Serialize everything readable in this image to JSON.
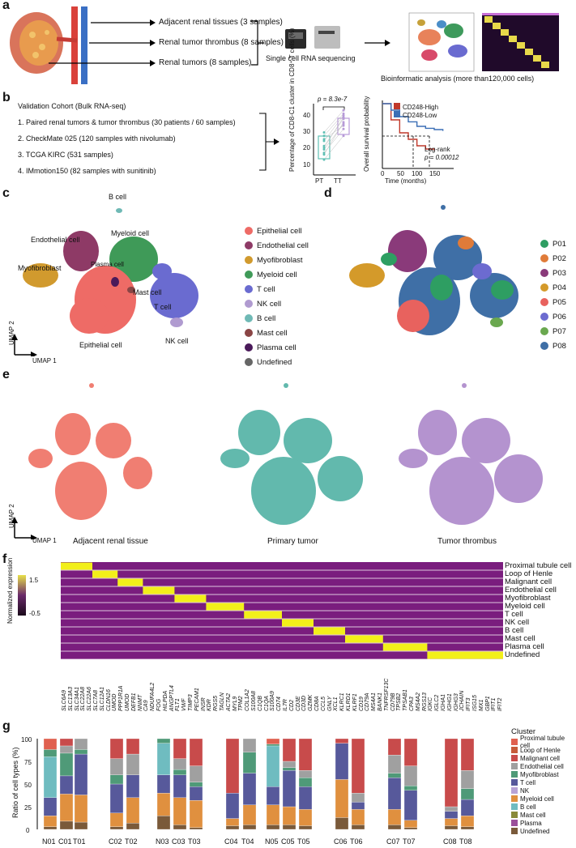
{
  "panel_a": {
    "label": "a",
    "arrows": [
      "Adjacent renal tissues (3 samples)",
      "Renal tumor thrombus  (8 samples)",
      "Renal tumors  (8 samples)"
    ],
    "sequencing": "Single cell RNA sequencing",
    "bioinformatic": "Bioinformatic analysis (more than120,000 cells)"
  },
  "panel_b": {
    "label": "b",
    "cohort_title": "Validation Cohort (Bulk RNA-seq)",
    "items": [
      "1. Paired renal tumors  & tumor thrombus (30 patients / 60 samples)",
      "2. CheckMate 025 (120 samples with nivolumab)",
      "3. TCGA KIRC (531 samples)",
      "4. IMmotion150 (82 samples with sunitinib)"
    ],
    "box_ylabel": "Percentage of CD8-C1 cluster in CD8⁺ T cells (%)",
    "pvalue": "p = 8.3e-7",
    "box_x": [
      "PT",
      "TT"
    ],
    "box_yticks": [
      "10",
      "20",
      "30",
      "40"
    ],
    "surv_ylabel": "Overall survival probability",
    "surv_xlabel": "Time (months)",
    "surv_legend": [
      "CD248-High",
      "CD248-Low"
    ],
    "surv_xticks": [
      "0",
      "50",
      "100",
      "150"
    ],
    "logrank": "Log-rank",
    "logrank_p": "p = 0.00012",
    "colors": {
      "high": "#c0392b",
      "low": "#3b6fb6"
    }
  },
  "panel_c": {
    "label": "c",
    "clusters": [
      "B cell",
      "Endothelial cell",
      "Myeloid cell",
      "Plasma cell",
      "Myofibroblast",
      "Mast cell",
      "T cell",
      "NK cell",
      "Epithelial cell"
    ],
    "legend": [
      {
        "name": "Epithelial cell",
        "color": "#ee6b66"
      },
      {
        "name": "Endothelial cell",
        "color": "#8e3a66"
      },
      {
        "name": "Myofibroblast",
        "color": "#d19a2e"
      },
      {
        "name": "Myeloid cell",
        "color": "#3f9a58"
      },
      {
        "name": "T cell",
        "color": "#6a6bd0"
      },
      {
        "name": "NK cell",
        "color": "#b09bd0"
      },
      {
        "name": "B cell",
        "color": "#6fb9b5"
      },
      {
        "name": "Mast cell",
        "color": "#8a4545"
      },
      {
        "name": "Plasma cell",
        "color": "#4a1a5a"
      },
      {
        "name": "Undefined",
        "color": "#666666"
      }
    ],
    "umap1": "UMAP 1",
    "umap2": "UMAP 2"
  },
  "panel_d": {
    "label": "d",
    "legend": [
      {
        "name": "P01",
        "color": "#2e9e62"
      },
      {
        "name": "P02",
        "color": "#e07b39"
      },
      {
        "name": "P03",
        "color": "#8a3a7a"
      },
      {
        "name": "P04",
        "color": "#d49a2a"
      },
      {
        "name": "P05",
        "color": "#e8625e"
      },
      {
        "name": "P06",
        "color": "#6c6bd0"
      },
      {
        "name": "P07",
        "color": "#6aa84f"
      },
      {
        "name": "P08",
        "color": "#3f6fa6"
      }
    ]
  },
  "panel_e": {
    "label": "e",
    "titles": [
      "Adjacent renal tissue",
      "Primary tumor",
      "Tumor thrombus"
    ],
    "colors": [
      "#f07e72",
      "#62b9ad",
      "#b493cf"
    ],
    "umap1": "UMAP 1",
    "umap2": "UMAP 2"
  },
  "panel_f": {
    "label": "f",
    "scale_label": "Normalized expression",
    "scale_max": "1.5",
    "scale_min": "-0.5",
    "rows": [
      "Proximal tubule cell",
      "Loop of Henle",
      "Malignant cell",
      "Endothelial cell",
      "Myofibroblast",
      "Myeloid cell",
      "T cell",
      "NK cell",
      "B cell",
      "Mast cell",
      "Plasma cell",
      "Undefined"
    ],
    "genes": [
      "SLC6A9",
      "SLC13A3",
      "SLC34A1",
      "SLC22A8",
      "SLC22A6",
      "SLC7A8",
      "SLC12A1",
      "CLDN16",
      "UMOD",
      "PPP1R1A",
      "UMOD",
      "DEFB1",
      "NNMT",
      "CA9",
      "NDUFA4L2",
      "FOG",
      "HILPDA",
      "ANGPTL4",
      "FLT1",
      "VWF",
      "TIMP3",
      "PECAM1",
      "INSR",
      "KDR",
      "RGS5",
      "TAGLN",
      "ACTA2",
      "MYL9",
      "TPM2",
      "COL1A2",
      "S100A8",
      "C1QB",
      "C1QA",
      "S100A9",
      "CD74",
      "IL7R",
      "CD2",
      "CD3E",
      "CD3D",
      "GZMK",
      "CD8A",
      "CCL5",
      "GNLY",
      "XCL1",
      "KLRC1",
      "KLRD1",
      "KLRF1",
      "CD19",
      "CD79A",
      "MS4A1",
      "BANK1",
      "TNFRSF13C",
      "CD79B",
      "TPSB2",
      "TPSAB1",
      "CPA3",
      "MS4A2",
      "RGS13",
      "IGKC",
      "IGLC2",
      "IGHA1",
      "IGHG1",
      "IGHG3",
      "JCHAIN",
      "IFIT3",
      "ISG15",
      "MX1",
      "GBP1",
      "IFIT1",
      "IFIT2"
    ]
  },
  "panel_g": {
    "label": "g",
    "ylabel": "Ratio of cell types (%)",
    "yticks": [
      "0",
      "25",
      "50",
      "75",
      "100"
    ],
    "legend_title": "Cluster",
    "legend": [
      {
        "name": "Proximal tubule cell",
        "color": "#e0604f"
      },
      {
        "name": "Loop of Henle",
        "color": "#c65a3a"
      },
      {
        "name": "Malignant cell",
        "color": "#c84b4b"
      },
      {
        "name": "Endothelial cell",
        "color": "#a0a0a0"
      },
      {
        "name": "Myofibroblast",
        "color": "#4f9a78"
      },
      {
        "name": "T cell",
        "color": "#57599b"
      },
      {
        "name": "NK",
        "color": "#b8a3d6"
      },
      {
        "name": "Myeloid cell",
        "color": "#e0903f"
      },
      {
        "name": "B cell",
        "color": "#6fbcc0"
      },
      {
        "name": "Mast cell",
        "color": "#8a8a3a"
      },
      {
        "name": "Plasma",
        "color": "#9a4f9a"
      },
      {
        "name": "Undefined",
        "color": "#7a5a3a"
      }
    ]
  },
  "chart_data": [
    {
      "type": "bar",
      "title": "",
      "ylabel": "Ratio of cell types (%)",
      "ylim": [
        0,
        100
      ],
      "categories": [
        "N01",
        "C01",
        "T01",
        "C02",
        "T02",
        "N03",
        "C03",
        "T03",
        "C04",
        "T04",
        "N05",
        "C05",
        "T05",
        "C06",
        "T06",
        "C07",
        "T07",
        "C08",
        "T08"
      ],
      "series": [
        {
          "name": "Proximal tubule cell",
          "values": [
            12,
            0,
            0,
            0,
            0,
            0,
            0,
            0,
            0,
            0,
            6,
            0,
            0,
            0,
            0,
            0,
            0,
            0,
            0
          ]
        },
        {
          "name": "Malignant cell",
          "values": [
            0,
            8,
            0,
            22,
            17,
            0,
            22,
            30,
            60,
            0,
            0,
            25,
            35,
            5,
            60,
            18,
            30,
            75,
            35
          ]
        },
        {
          "name": "Endothelial cell",
          "values": [
            0,
            8,
            12,
            18,
            23,
            0,
            12,
            18,
            0,
            15,
            0,
            7,
            8,
            0,
            10,
            20,
            22,
            5,
            20
          ]
        },
        {
          "name": "Myofibroblast",
          "values": [
            8,
            25,
            5,
            10,
            0,
            5,
            6,
            5,
            0,
            23,
            2,
            3,
            10,
            0,
            0,
            5,
            5,
            0,
            12
          ]
        },
        {
          "name": "B cell",
          "values": [
            45,
            0,
            0,
            0,
            0,
            35,
            0,
            0,
            0,
            0,
            45,
            0,
            0,
            0,
            0,
            0,
            0,
            0,
            0
          ]
        },
        {
          "name": "T cell",
          "values": [
            20,
            20,
            45,
            32,
            25,
            20,
            25,
            15,
            28,
            35,
            20,
            40,
            25,
            40,
            8,
            35,
            33,
            8,
            18
          ]
        },
        {
          "name": "Myeloid cell",
          "values": [
            12,
            30,
            30,
            15,
            28,
            25,
            30,
            30,
            8,
            22,
            22,
            20,
            18,
            42,
            17,
            17,
            8,
            8,
            12
          ]
        },
        {
          "name": "Undefined",
          "values": [
            3,
            9,
            8,
            3,
            7,
            15,
            5,
            2,
            4,
            5,
            5,
            5,
            4,
            13,
            5,
            5,
            2,
            4,
            3
          ]
        }
      ]
    },
    {
      "type": "line",
      "title": "",
      "xlabel": "Time (months)",
      "ylabel": "Overall survival probability",
      "series": [
        {
          "name": "CD248-High",
          "x": [
            0,
            20,
            40,
            60,
            80,
            100,
            120
          ],
          "y": [
            1.0,
            0.75,
            0.55,
            0.45,
            0.35,
            0.3,
            0.28
          ]
        },
        {
          "name": "CD248-Low",
          "x": [
            0,
            20,
            40,
            60,
            80,
            100,
            120,
            140
          ],
          "y": [
            1.0,
            0.9,
            0.8,
            0.72,
            0.65,
            0.62,
            0.6,
            0.58
          ]
        }
      ]
    },
    {
      "type": "scatter",
      "title": "",
      "ylabel": "Percentage of CD8-C1 cluster in CD8⁺ T cells (%)",
      "categories": [
        "PT",
        "TT"
      ],
      "series": [
        {
          "name": "PT",
          "values": [
            14,
            18,
            20,
            22,
            25,
            28,
            30,
            17,
            21,
            26
          ]
        },
        {
          "name": "TT",
          "values": [
            28,
            32,
            35,
            38,
            40,
            41,
            43,
            36,
            39,
            34
          ]
        }
      ]
    }
  ]
}
